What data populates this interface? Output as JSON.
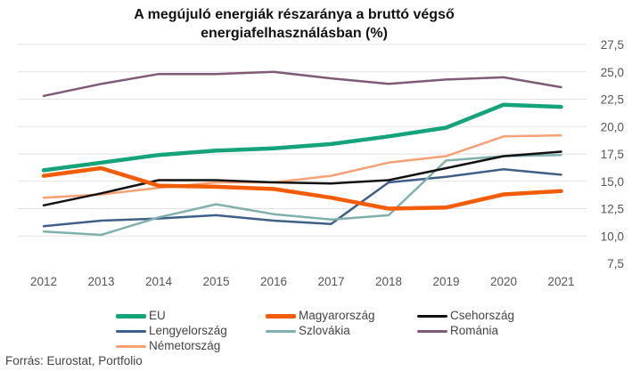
{
  "chart_data": {
    "type": "line",
    "title_lines": [
      "A megújuló energiák részaránya a bruttó végső",
      "energiafelhasználásban (%)"
    ],
    "categories": [
      "2012",
      "2013",
      "2014",
      "2015",
      "2016",
      "2017",
      "2018",
      "2019",
      "2020",
      "2021"
    ],
    "y_ticks": [
      "27,5",
      "25,0",
      "22,5",
      "20,0",
      "17,5",
      "15,0",
      "12,5",
      "10,0",
      "7,5"
    ],
    "ylim": [
      7.5,
      27.5
    ],
    "y_axis_position": "right",
    "grid": true,
    "legend_position": "bottom",
    "series": [
      {
        "name": "EU",
        "color": "#14a37a",
        "width": 4.5,
        "values": [
          16.0,
          16.7,
          17.4,
          17.8,
          18.0,
          18.4,
          19.1,
          19.9,
          22.0,
          21.8
        ]
      },
      {
        "name": "Magyarország",
        "color": "#f25c05",
        "width": 4.5,
        "values": [
          15.5,
          16.2,
          14.6,
          14.5,
          14.3,
          13.5,
          12.5,
          12.6,
          13.8,
          14.1
        ]
      },
      {
        "name": "Csehország",
        "color": "#111111",
        "width": 2.5,
        "values": [
          12.8,
          13.9,
          15.1,
          15.1,
          14.9,
          14.8,
          15.1,
          16.2,
          17.3,
          17.7
        ]
      },
      {
        "name": "Lengyelország",
        "color": "#3e5f86",
        "width": 2.5,
        "values": [
          10.9,
          11.4,
          11.6,
          11.9,
          11.4,
          11.1,
          14.9,
          15.4,
          16.1,
          15.6
        ]
      },
      {
        "name": "Szlovákia",
        "color": "#7fb0ad",
        "width": 2.5,
        "values": [
          10.4,
          10.1,
          11.7,
          12.9,
          12.0,
          11.5,
          11.9,
          16.9,
          17.3,
          17.4
        ]
      },
      {
        "name": "Románia",
        "color": "#7e5a76",
        "width": 2.5,
        "values": [
          22.8,
          23.9,
          24.8,
          24.8,
          25.0,
          24.4,
          23.9,
          24.3,
          24.5,
          23.6
        ]
      },
      {
        "name": "Németország",
        "color": "#f7a073",
        "width": 2.5,
        "values": [
          13.5,
          13.8,
          14.4,
          14.9,
          14.9,
          15.5,
          16.7,
          17.3,
          19.1,
          19.2
        ]
      }
    ]
  },
  "source_note": "Forrás: Eurostat, Portfolio"
}
